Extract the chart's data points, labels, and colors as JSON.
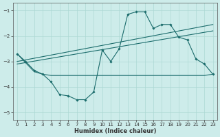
{
  "xlabel": "Humidex (Indice chaleur)",
  "background_color": "#cdecea",
  "grid_color": "#add8d4",
  "line_color": "#1a6b6b",
  "xlim": [
    -0.5,
    23.5
  ],
  "ylim": [
    -5.3,
    -0.7
  ],
  "yticks": [
    -5,
    -4,
    -3,
    -2,
    -1
  ],
  "xticks": [
    0,
    1,
    2,
    3,
    4,
    5,
    6,
    7,
    8,
    9,
    10,
    11,
    12,
    13,
    14,
    15,
    16,
    17,
    18,
    19,
    20,
    21,
    22,
    23
  ],
  "line1_x": [
    0,
    1,
    2,
    3,
    4,
    5,
    6,
    7,
    8,
    9,
    10,
    11,
    12,
    13,
    14,
    15,
    16,
    17,
    18,
    19,
    20,
    21,
    22,
    23
  ],
  "line1_y": [
    -2.7,
    -3.0,
    -3.35,
    -3.5,
    -3.8,
    -4.3,
    -4.35,
    -4.5,
    -4.5,
    -4.2,
    -2.55,
    -3.0,
    -2.5,
    -1.15,
    -1.05,
    -1.05,
    -1.7,
    -1.55,
    -1.55,
    -2.05,
    -2.15,
    -2.9,
    -3.1,
    -3.5
  ],
  "line2_x": [
    0,
    1,
    2,
    3,
    4,
    5,
    6,
    7,
    8,
    9,
    10,
    11,
    12,
    13,
    14,
    15,
    16,
    17,
    18,
    19,
    20,
    21,
    22,
    23
  ],
  "line2_y": [
    -2.7,
    -3.05,
    -3.4,
    -3.5,
    -3.55,
    -3.55,
    -3.55,
    -3.55,
    -3.55,
    -3.55,
    -3.55,
    -3.55,
    -3.55,
    -3.55,
    -3.55,
    -3.55,
    -3.55,
    -3.55,
    -3.55,
    -3.55,
    -3.55,
    -3.55,
    -3.55,
    -3.5
  ],
  "line3_x": [
    0,
    23
  ],
  "line3_y": [
    -3.0,
    -1.55
  ],
  "line4_x": [
    0,
    23
  ],
  "line4_y": [
    -3.1,
    -1.8
  ]
}
